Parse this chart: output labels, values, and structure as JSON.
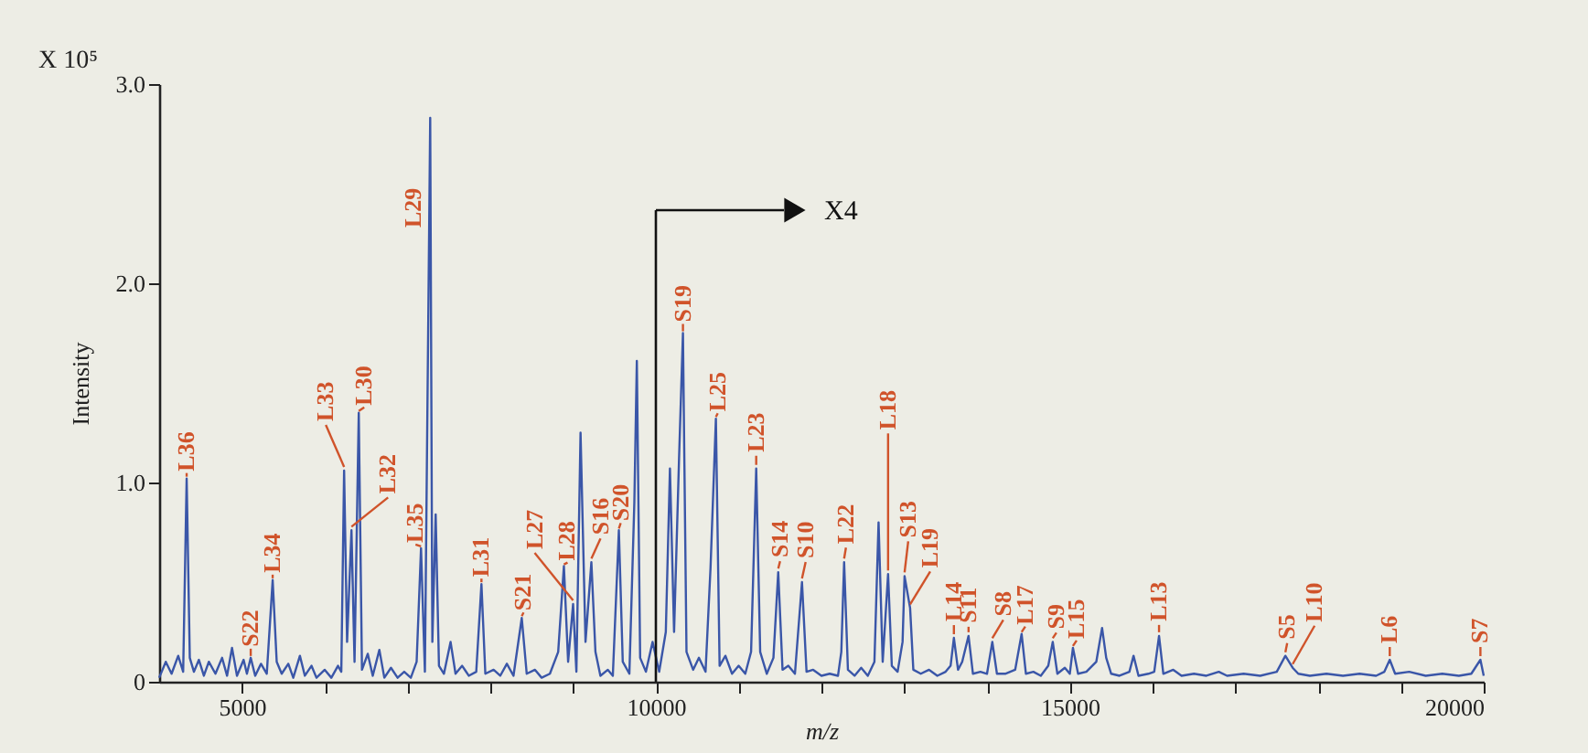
{
  "chart_data": {
    "type": "line",
    "xlabel": "m/z",
    "ylabel": "Intensity",
    "xlim": [
      4000,
      20000
    ],
    "ylim": [
      0,
      3.0
    ],
    "xticks": [
      5000,
      {
        "value": 6000,
        "label": null
      },
      {
        "value": 7000,
        "label": null
      },
      {
        "value": 8000,
        "label": null
      },
      {
        "value": 9000,
        "label": null
      },
      10000,
      {
        "value": 11000,
        "label": null
      },
      {
        "value": 12000,
        "label": null
      },
      {
        "value": 13000,
        "label": null
      },
      {
        "value": 14000,
        "label": null
      },
      15000,
      {
        "value": 16000,
        "label": null
      },
      {
        "value": 17000,
        "label": null
      },
      {
        "value": 18000,
        "label": null
      },
      {
        "value": 19000,
        "label": null
      },
      20000
    ],
    "yticks": [
      0,
      {
        "value": 1,
        "label": "1.0"
      },
      {
        "value": 2,
        "label": "2.0"
      },
      {
        "value": 3,
        "label": "3.0"
      }
    ],
    "grid": false,
    "ref_lines": [
      {
        "axis": "x",
        "value": 10000,
        "label": "X4",
        "color": "#111111"
      }
    ],
    "marker": "none",
    "line_style": "solid",
    "series": [
      {
        "color": "#3a56a8",
        "x": [
          4000,
          4080,
          4150,
          4230,
          4290,
          4332,
          4370,
          4420,
          4480,
          4540,
          4600,
          4680,
          4760,
          4820,
          4880,
          4940,
          5020,
          5060,
          5106,
          5160,
          5230,
          5300,
          5371,
          5420,
          5480,
          5560,
          5620,
          5700,
          5760,
          5840,
          5900,
          6000,
          6080,
          6160,
          6200,
          6234,
          6270,
          6323,
          6360,
          6411,
          6450,
          6520,
          6580,
          6660,
          6720,
          6800,
          6880,
          6960,
          7040,
          7110,
          7163,
          7210,
          7274,
          7300,
          7340,
          7380,
          7440,
          7520,
          7580,
          7660,
          7740,
          7830,
          7893,
          7940,
          8040,
          8120,
          8200,
          8280,
          8380,
          8440,
          8540,
          8620,
          8720,
          8820,
          8889,
          8940,
          9000,
          9040,
          9090,
          9150,
          9221,
          9270,
          9330,
          9420,
          9480,
          9553,
          9600,
          9680,
          9740,
          9770,
          9810,
          9880,
          9960,
          10040,
          10120,
          10170,
          10220,
          10280,
          10327,
          10370,
          10450,
          10520,
          10600,
          10660,
          10725,
          10770,
          10840,
          10920,
          11000,
          11080,
          11150,
          11212,
          11260,
          11340,
          11420,
          11478,
          11530,
          11600,
          11680,
          11765,
          11820,
          11900,
          12000,
          12100,
          12200,
          12240,
          12274,
          12320,
          12400,
          12480,
          12560,
          12640,
          12690,
          12740,
          12805,
          12850,
          12920,
          12980,
          13004,
          13071,
          13110,
          13200,
          13300,
          13400,
          13500,
          13560,
          13600,
          13650,
          13700,
          13777,
          13830,
          13920,
          14000,
          14064,
          14120,
          14220,
          14340,
          14418,
          14470,
          14560,
          14650,
          14740,
          14794,
          14850,
          14940,
          15000,
          15038,
          15100,
          15200,
          15320,
          15390,
          15440,
          15500,
          15600,
          15720,
          15770,
          15830,
          15950,
          16020,
          16078,
          16130,
          16250,
          16350,
          16500,
          16650,
          16800,
          16900,
          17100,
          17300,
          17500,
          17604,
          17692,
          17760,
          17900,
          18100,
          18300,
          18500,
          18700,
          18800,
          18865,
          18930,
          19100,
          19300,
          19500,
          19700,
          19850,
          19960,
          20000
        ],
        "values": [
          0.02,
          0.1,
          0.04,
          0.13,
          0.05,
          1.02,
          0.12,
          0.05,
          0.11,
          0.03,
          0.1,
          0.04,
          0.12,
          0.03,
          0.17,
          0.03,
          0.11,
          0.04,
          0.12,
          0.03,
          0.09,
          0.04,
          0.51,
          0.1,
          0.04,
          0.09,
          0.02,
          0.13,
          0.03,
          0.08,
          0.02,
          0.06,
          0.02,
          0.08,
          0.05,
          1.06,
          0.2,
          0.76,
          0.1,
          1.35,
          0.06,
          0.14,
          0.03,
          0.16,
          0.02,
          0.07,
          0.02,
          0.05,
          0.02,
          0.1,
          0.67,
          0.05,
          2.83,
          0.2,
          0.84,
          0.08,
          0.04,
          0.2,
          0.04,
          0.08,
          0.03,
          0.05,
          0.49,
          0.04,
          0.06,
          0.03,
          0.09,
          0.03,
          0.32,
          0.04,
          0.06,
          0.02,
          0.04,
          0.15,
          0.58,
          0.1,
          0.39,
          0.05,
          1.25,
          0.2,
          0.6,
          0.15,
          0.03,
          0.06,
          0.03,
          0.76,
          0.1,
          0.04,
          0.9,
          1.61,
          0.12,
          0.05,
          0.2,
          0.05,
          0.25,
          1.07,
          0.25,
          1.12,
          1.75,
          0.15,
          0.06,
          0.12,
          0.05,
          0.57,
          1.32,
          0.08,
          0.13,
          0.04,
          0.08,
          0.04,
          0.15,
          1.07,
          0.15,
          0.04,
          0.12,
          0.55,
          0.06,
          0.08,
          0.04,
          0.5,
          0.05,
          0.06,
          0.03,
          0.04,
          0.03,
          0.15,
          0.6,
          0.06,
          0.03,
          0.07,
          0.03,
          0.1,
          0.8,
          0.1,
          0.54,
          0.08,
          0.05,
          0.2,
          0.53,
          0.37,
          0.06,
          0.04,
          0.06,
          0.03,
          0.05,
          0.08,
          0.22,
          0.06,
          0.1,
          0.23,
          0.04,
          0.05,
          0.04,
          0.2,
          0.04,
          0.04,
          0.06,
          0.24,
          0.04,
          0.05,
          0.03,
          0.08,
          0.2,
          0.04,
          0.07,
          0.04,
          0.17,
          0.04,
          0.05,
          0.1,
          0.27,
          0.12,
          0.04,
          0.03,
          0.05,
          0.13,
          0.03,
          0.04,
          0.05,
          0.23,
          0.04,
          0.06,
          0.03,
          0.04,
          0.03,
          0.05,
          0.03,
          0.04,
          0.03,
          0.05,
          0.13,
          0.07,
          0.04,
          0.03,
          0.04,
          0.03,
          0.04,
          0.03,
          0.05,
          0.11,
          0.04,
          0.05,
          0.03,
          0.04,
          0.03,
          0.04,
          0.11,
          0.03
        ]
      }
    ],
    "annotations": [
      "X 10⁵",
      {
        "text": "L36",
        "x": 4332,
        "y": 1.02
      },
      {
        "text": "S22",
        "x": 5106,
        "y": 0.12
      },
      {
        "text": "L34",
        "x": 5371,
        "y": 0.51
      },
      {
        "text": "L33",
        "x": 6234,
        "y": 1.06
      },
      {
        "text": "L32",
        "x": 6323,
        "y": 0.76
      },
      {
        "text": "L30",
        "x": 6411,
        "y": 1.35
      },
      {
        "text": "L35",
        "x": 7163,
        "y": 0.67
      },
      {
        "text": "L29",
        "x": 7274,
        "y": 2.83
      },
      {
        "text": "L31",
        "x": 7893,
        "y": 0.49
      },
      {
        "text": "S21",
        "x": 8380,
        "y": 0.32
      },
      {
        "text": "L27",
        "x": 9000,
        "y": 0.39
      },
      {
        "text": "L28",
        "x": 8889,
        "y": 0.58
      },
      {
        "text": "S16",
        "x": 9221,
        "y": 0.6
      },
      {
        "text": "S20",
        "x": 9553,
        "y": 0.76
      },
      {
        "text": "S19",
        "x": 10327,
        "y": 1.75
      },
      {
        "text": "L25",
        "x": 10725,
        "y": 1.32
      },
      {
        "text": "L23",
        "x": 11212,
        "y": 1.07
      },
      {
        "text": "S14",
        "x": 11478,
        "y": 0.55
      },
      {
        "text": "S10",
        "x": 11765,
        "y": 0.5
      },
      {
        "text": "L22",
        "x": 12274,
        "y": 0.6
      },
      {
        "text": "L18",
        "x": 12805,
        "y": 0.54
      },
      {
        "text": "S13",
        "x": 13004,
        "y": 0.53
      },
      {
        "text": "L19",
        "x": 13071,
        "y": 0.37
      },
      {
        "text": "L14",
        "x": 13600,
        "y": 0.22
      },
      {
        "text": "S11",
        "x": 13777,
        "y": 0.23
      },
      {
        "text": "S8",
        "x": 14064,
        "y": 0.2
      },
      {
        "text": "L17",
        "x": 14418,
        "y": 0.24
      },
      {
        "text": "S9",
        "x": 14794,
        "y": 0.2
      },
      {
        "text": "L15",
        "x": 15038,
        "y": 0.17
      },
      {
        "text": "L13",
        "x": 16078,
        "y": 0.23
      },
      {
        "text": "S5",
        "x": 17604,
        "y": 0.13
      },
      {
        "text": "L10",
        "x": 17692,
        "y": 0.07
      },
      {
        "text": "L6",
        "x": 18865,
        "y": 0.11
      },
      {
        "text": "S7",
        "x": 19960,
        "y": 0.11
      }
    ]
  }
}
